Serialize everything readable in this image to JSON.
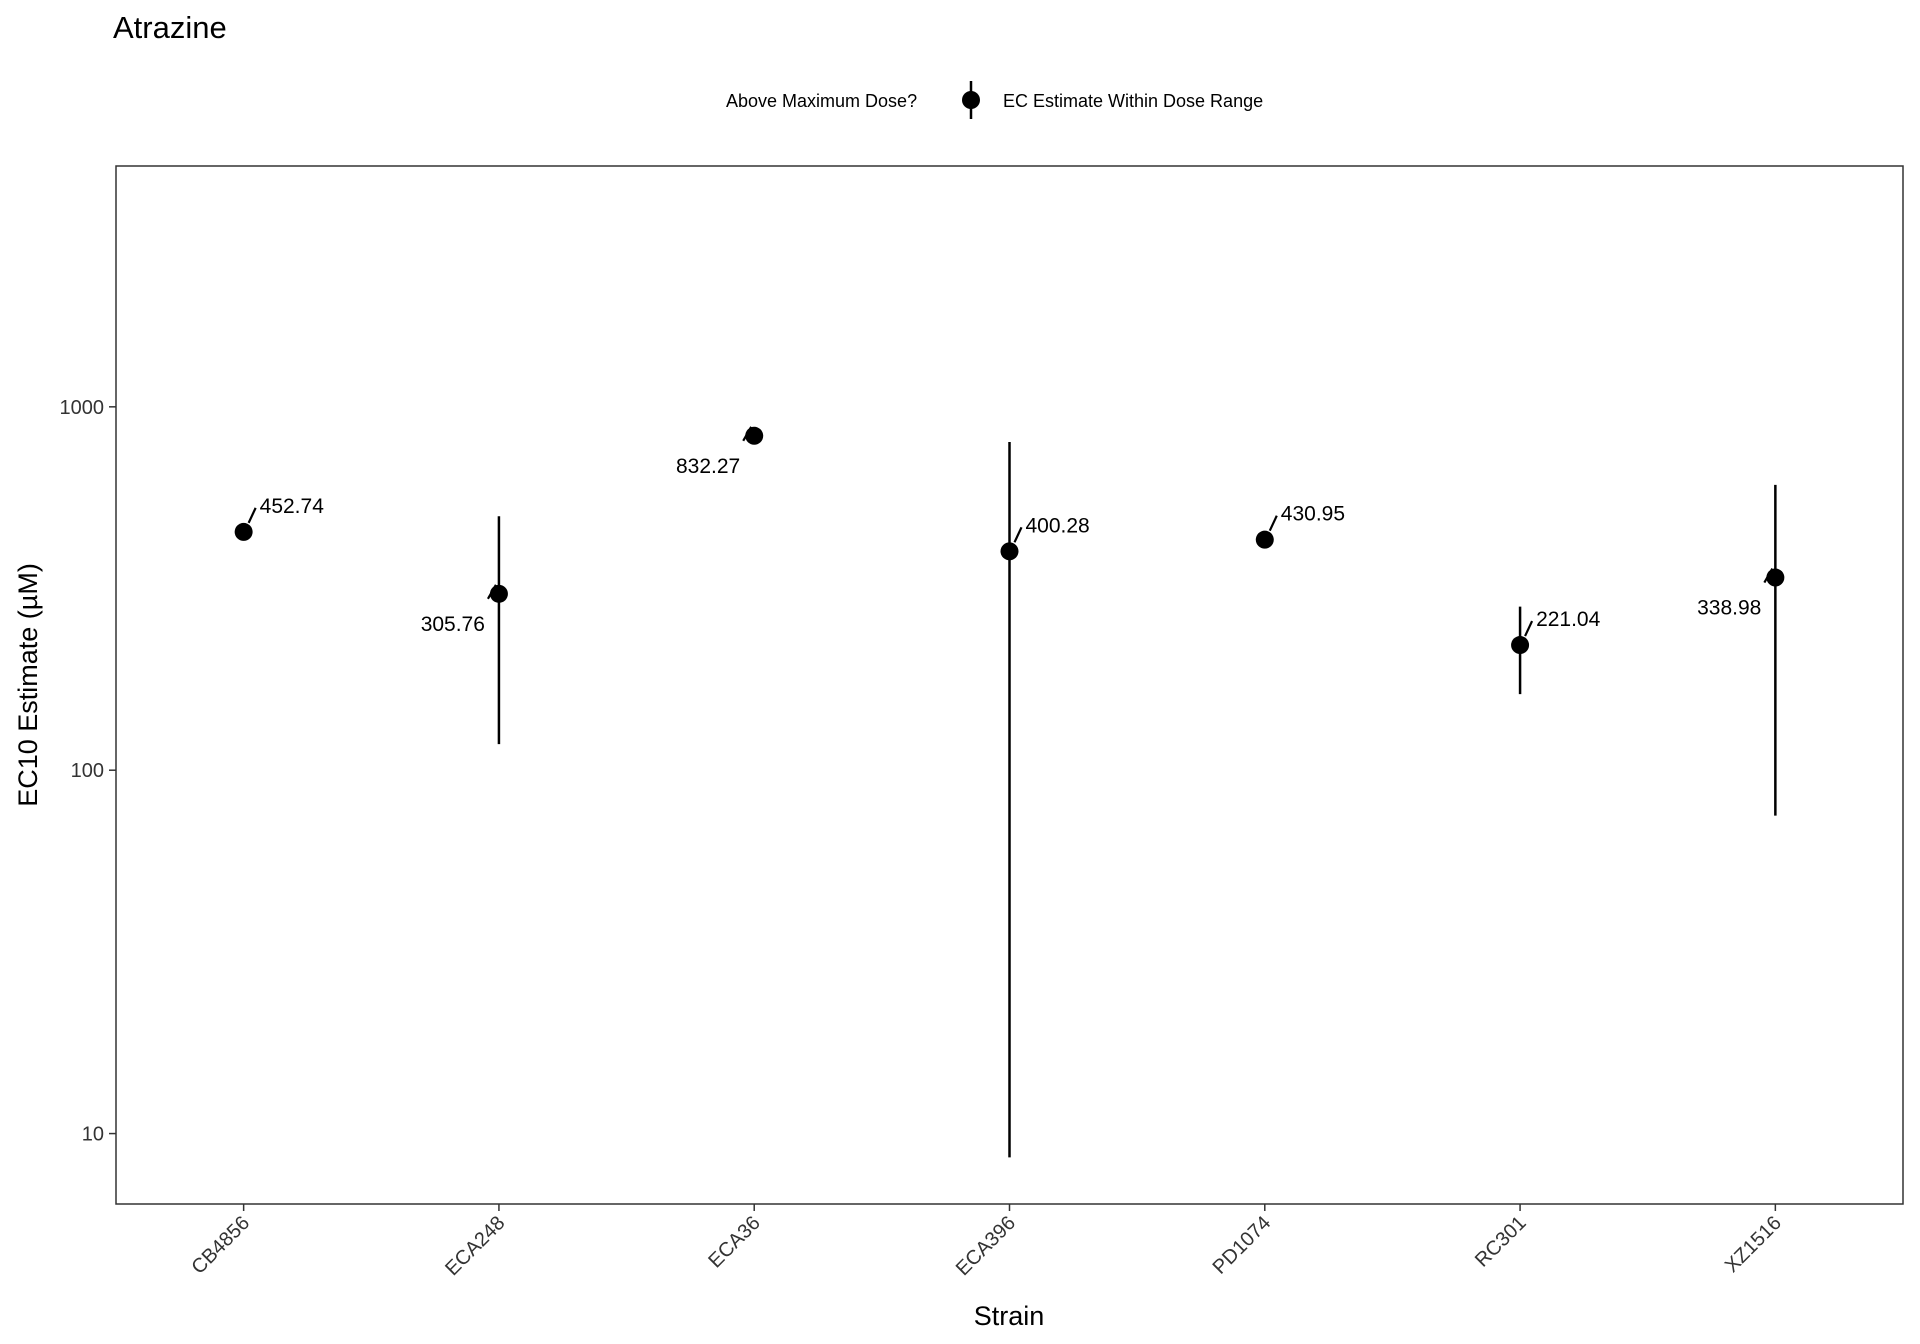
{
  "chart_data": {
    "type": "scatter",
    "title": "Atrazine",
    "xlabel": "Strain",
    "ylabel": "EC10 Estimate (µM)",
    "yscale": "log",
    "ylim": [
      6.4,
      4600
    ],
    "yticks": [
      {
        "value": 10,
        "label": "10"
      },
      {
        "value": 100,
        "label": "100"
      },
      {
        "value": 1000,
        "label": "1000"
      }
    ],
    "legend": {
      "title": "Above Maximum Dose?",
      "entries": [
        "EC Estimate Within Dose Range"
      ],
      "position": "top"
    },
    "grid": false,
    "categories": [
      "CB4856",
      "ECA248",
      "ECA36",
      "ECA396",
      "PD1074",
      "RC301",
      "XZ1516"
    ],
    "points": [
      {
        "strain": "CB4856",
        "estimate": 452.74,
        "label": "452.74",
        "lower": null,
        "upper": null,
        "label_side": "right"
      },
      {
        "strain": "ECA248",
        "estimate": 305.76,
        "label": "305.76",
        "lower": 118,
        "upper": 500,
        "label_side": "left"
      },
      {
        "strain": "ECA36",
        "estimate": 832.27,
        "label": "832.27",
        "lower": null,
        "upper": null,
        "label_side": "left"
      },
      {
        "strain": "ECA396",
        "estimate": 400.28,
        "label": "400.28",
        "lower": 8.6,
        "upper": 800,
        "label_side": "right"
      },
      {
        "strain": "PD1074",
        "estimate": 430.95,
        "label": "430.95",
        "lower": null,
        "upper": null,
        "label_side": "right"
      },
      {
        "strain": "RC301",
        "estimate": 221.04,
        "label": "221.04",
        "lower": 162,
        "upper": 282,
        "label_side": "right"
      },
      {
        "strain": "XZ1516",
        "estimate": 338.98,
        "label": "338.98",
        "lower": 75,
        "upper": 610,
        "label_side": "left"
      }
    ]
  }
}
